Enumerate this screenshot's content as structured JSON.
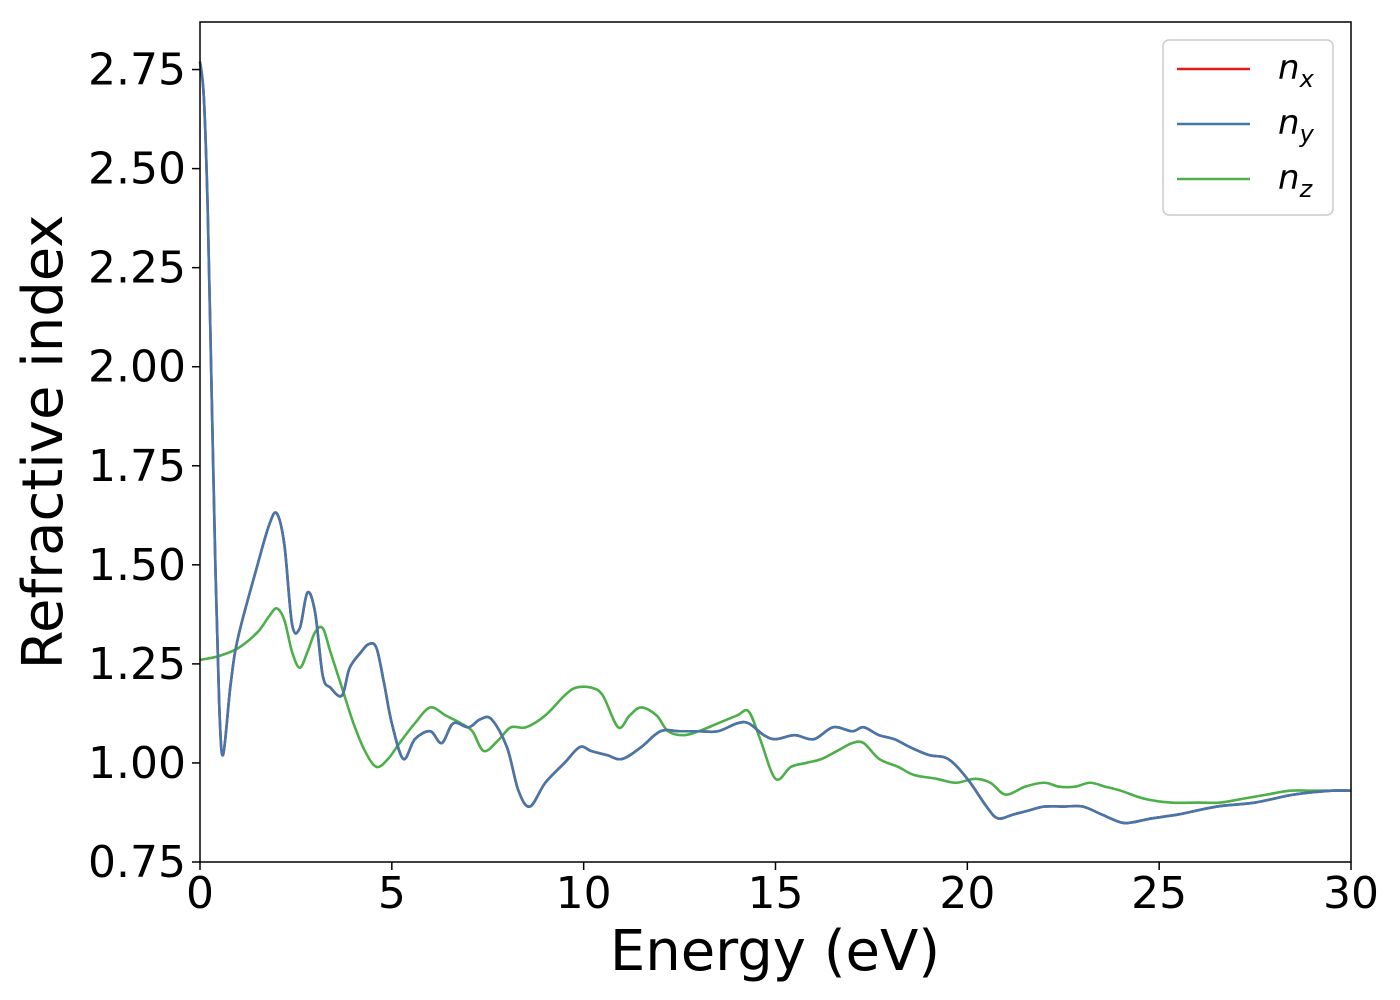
{
  "chart_data": {
    "type": "line",
    "xlabel": "Energy (eV)",
    "ylabel": "Refractive index",
    "xlim": [
      0,
      30
    ],
    "ylim": [
      0.75,
      2.87
    ],
    "xticks": [
      0,
      5,
      10,
      15,
      20,
      25,
      30
    ],
    "xtick_labels": [
      "0",
      "5",
      "10",
      "15",
      "20",
      "25",
      "30"
    ],
    "yticks": [
      0.75,
      1.0,
      1.25,
      1.5,
      1.75,
      2.0,
      2.25,
      2.5,
      2.75
    ],
    "ytick_labels": [
      "0.75",
      "1.00",
      "1.25",
      "1.50",
      "1.75",
      "2.00",
      "2.25",
      "2.50",
      "2.75"
    ],
    "grid": false,
    "legend_position": "top-right",
    "series": [
      {
        "name": "n",
        "sub": "x",
        "color": "#e41a1c",
        "x": [
          0,
          0.1,
          0.2,
          0.3,
          0.4,
          0.5,
          0.6,
          0.8,
          1.0,
          1.5,
          1.8,
          2.0,
          2.2,
          2.4,
          2.6,
          2.8,
          3.0,
          3.2,
          3.4,
          3.7,
          3.9,
          4.2,
          4.4,
          4.6,
          4.8,
          5.0,
          5.3,
          5.6,
          6.0,
          6.3,
          6.6,
          7.0,
          7.3,
          7.6,
          8.0,
          8.3,
          8.6,
          9.0,
          9.5,
          9.9,
          10.2,
          10.6,
          11.0,
          11.5,
          12.0,
          12.5,
          13.0,
          13.5,
          14.0,
          14.3,
          14.7,
          15.0,
          15.5,
          16.0,
          16.5,
          17.0,
          17.3,
          17.7,
          18.1,
          18.5,
          19.0,
          19.5,
          20.0,
          20.5,
          20.8,
          21.2,
          21.6,
          22.0,
          22.5,
          23.0,
          23.5,
          24.0,
          24.3,
          24.8,
          25.5,
          26.5,
          27.5,
          28.5,
          29.5,
          30.0
        ],
        "values": [
          2.77,
          2.68,
          2.4,
          1.95,
          1.5,
          1.15,
          1.02,
          1.2,
          1.32,
          1.5,
          1.6,
          1.63,
          1.55,
          1.35,
          1.34,
          1.43,
          1.38,
          1.22,
          1.19,
          1.17,
          1.24,
          1.28,
          1.3,
          1.29,
          1.2,
          1.1,
          1.01,
          1.06,
          1.08,
          1.05,
          1.1,
          1.09,
          1.11,
          1.11,
          1.04,
          0.93,
          0.89,
          0.95,
          1.0,
          1.04,
          1.03,
          1.02,
          1.01,
          1.04,
          1.08,
          1.08,
          1.08,
          1.08,
          1.1,
          1.1,
          1.07,
          1.06,
          1.07,
          1.06,
          1.09,
          1.08,
          1.09,
          1.07,
          1.06,
          1.04,
          1.02,
          1.01,
          0.96,
          0.89,
          0.86,
          0.87,
          0.88,
          0.89,
          0.89,
          0.89,
          0.87,
          0.85,
          0.85,
          0.86,
          0.87,
          0.89,
          0.9,
          0.92,
          0.93,
          0.93
        ]
      },
      {
        "name": "n",
        "sub": "y",
        "color": "#4477aa",
        "x": [
          0,
          0.1,
          0.2,
          0.3,
          0.4,
          0.5,
          0.6,
          0.8,
          1.0,
          1.5,
          1.8,
          2.0,
          2.2,
          2.4,
          2.6,
          2.8,
          3.0,
          3.2,
          3.4,
          3.7,
          3.9,
          4.2,
          4.4,
          4.6,
          4.8,
          5.0,
          5.3,
          5.6,
          6.0,
          6.3,
          6.6,
          7.0,
          7.3,
          7.6,
          8.0,
          8.3,
          8.6,
          9.0,
          9.5,
          9.9,
          10.2,
          10.6,
          11.0,
          11.5,
          12.0,
          12.5,
          13.0,
          13.5,
          14.0,
          14.3,
          14.7,
          15.0,
          15.5,
          16.0,
          16.5,
          17.0,
          17.3,
          17.7,
          18.1,
          18.5,
          19.0,
          19.5,
          20.0,
          20.5,
          20.8,
          21.2,
          21.6,
          22.0,
          22.5,
          23.0,
          23.5,
          24.0,
          24.3,
          24.8,
          25.5,
          26.5,
          27.5,
          28.5,
          29.5,
          30.0
        ],
        "values": [
          2.77,
          2.68,
          2.4,
          1.95,
          1.5,
          1.15,
          1.02,
          1.2,
          1.32,
          1.5,
          1.6,
          1.63,
          1.55,
          1.35,
          1.34,
          1.43,
          1.38,
          1.22,
          1.19,
          1.17,
          1.24,
          1.28,
          1.3,
          1.29,
          1.2,
          1.1,
          1.01,
          1.06,
          1.08,
          1.05,
          1.1,
          1.09,
          1.11,
          1.11,
          1.04,
          0.93,
          0.89,
          0.95,
          1.0,
          1.04,
          1.03,
          1.02,
          1.01,
          1.04,
          1.08,
          1.08,
          1.08,
          1.08,
          1.1,
          1.1,
          1.07,
          1.06,
          1.07,
          1.06,
          1.09,
          1.08,
          1.09,
          1.07,
          1.06,
          1.04,
          1.02,
          1.01,
          0.96,
          0.89,
          0.86,
          0.87,
          0.88,
          0.89,
          0.89,
          0.89,
          0.87,
          0.85,
          0.85,
          0.86,
          0.87,
          0.89,
          0.9,
          0.92,
          0.93,
          0.93
        ]
      },
      {
        "name": "n",
        "sub": "z",
        "color": "#4daf4a",
        "x": [
          0,
          0.5,
          1.0,
          1.5,
          1.8,
          2.0,
          2.2,
          2.4,
          2.6,
          2.8,
          3.0,
          3.2,
          3.4,
          3.7,
          4.0,
          4.3,
          4.6,
          4.9,
          5.2,
          5.6,
          6.0,
          6.4,
          6.8,
          7.1,
          7.4,
          7.8,
          8.1,
          8.5,
          9.0,
          9.5,
          9.8,
          10.2,
          10.5,
          10.9,
          11.2,
          11.5,
          11.9,
          12.2,
          12.6,
          13.0,
          13.5,
          14.0,
          14.3,
          14.6,
          15.0,
          15.4,
          15.8,
          16.2,
          16.6,
          17.0,
          17.3,
          17.7,
          18.2,
          18.6,
          19.2,
          19.7,
          20.2,
          20.6,
          21.0,
          21.5,
          22.0,
          22.4,
          22.8,
          23.2,
          23.6,
          24.0,
          24.6,
          25.3,
          26.0,
          26.6,
          27.2,
          27.8,
          28.4,
          29.0,
          29.6,
          30.0
        ],
        "values": [
          1.26,
          1.27,
          1.29,
          1.33,
          1.37,
          1.39,
          1.36,
          1.28,
          1.24,
          1.28,
          1.33,
          1.34,
          1.28,
          1.19,
          1.1,
          1.03,
          0.99,
          1.01,
          1.05,
          1.1,
          1.14,
          1.12,
          1.1,
          1.08,
          1.03,
          1.06,
          1.09,
          1.09,
          1.12,
          1.17,
          1.19,
          1.19,
          1.17,
          1.09,
          1.12,
          1.14,
          1.12,
          1.08,
          1.07,
          1.08,
          1.1,
          1.12,
          1.13,
          1.06,
          0.96,
          0.99,
          1.0,
          1.01,
          1.03,
          1.05,
          1.05,
          1.01,
          0.99,
          0.97,
          0.96,
          0.95,
          0.96,
          0.95,
          0.92,
          0.94,
          0.95,
          0.94,
          0.94,
          0.95,
          0.94,
          0.93,
          0.91,
          0.9,
          0.9,
          0.9,
          0.91,
          0.92,
          0.93,
          0.93,
          0.93,
          0.93
        ]
      }
    ]
  }
}
